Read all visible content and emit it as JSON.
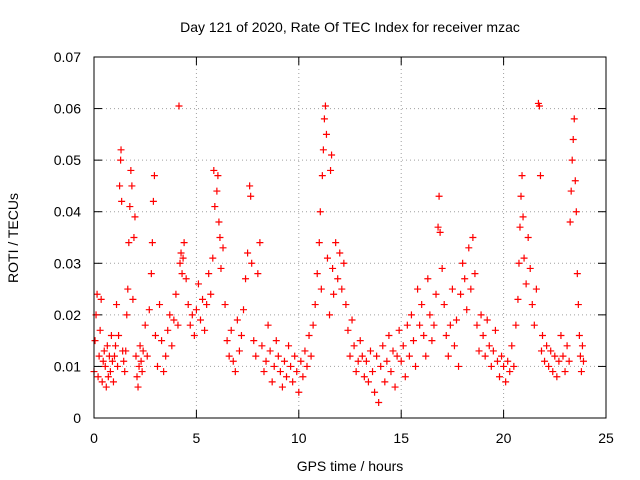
{
  "chart_data": {
    "type": "scatter",
    "title": "Day 121 of 2020, Rate Of TEC Index for receiver mzac",
    "xlabel": "GPS time / hours",
    "ylabel": "ROTI / TECUs",
    "xlim": [
      0,
      25
    ],
    "ylim": [
      0,
      0.07
    ],
    "xticks": [
      0,
      5,
      10,
      15,
      20,
      25
    ],
    "xtick_labels": [
      "0",
      "5",
      "10",
      "15",
      "20",
      "25"
    ],
    "yticks": [
      0,
      0.01,
      0.02,
      0.03,
      0.04,
      0.05,
      0.06,
      0.07
    ],
    "ytick_labels": [
      "0",
      "0.01",
      "0.02",
      "0.03",
      "0.04",
      "0.05",
      "0.06",
      "0.07"
    ],
    "grid": true,
    "marker": "+",
    "marker_color": "#ff0000",
    "series": [
      {
        "name": "ROTI",
        "points": [
          [
            0.0,
            0.009
          ],
          [
            0.05,
            0.015
          ],
          [
            0.1,
            0.02
          ],
          [
            0.15,
            0.024
          ],
          [
            0.2,
            0.008
          ],
          [
            0.25,
            0.012
          ],
          [
            0.3,
            0.017
          ],
          [
            0.35,
            0.023
          ],
          [
            0.4,
            0.007
          ],
          [
            0.45,
            0.011
          ],
          [
            0.5,
            0.013
          ],
          [
            0.55,
            0.01
          ],
          [
            0.6,
            0.006
          ],
          [
            0.65,
            0.014
          ],
          [
            0.7,
            0.008
          ],
          [
            0.75,
            0.012
          ],
          [
            0.8,
            0.009
          ],
          [
            0.85,
            0.016
          ],
          [
            0.9,
            0.011
          ],
          [
            0.95,
            0.007
          ],
          [
            1.0,
            0.012
          ],
          [
            1.05,
            0.014
          ],
          [
            1.1,
            0.022
          ],
          [
            1.15,
            0.01
          ],
          [
            1.2,
            0.016
          ],
          [
            1.25,
            0.045
          ],
          [
            1.3,
            0.05
          ],
          [
            1.32,
            0.052
          ],
          [
            1.35,
            0.042
          ],
          [
            1.4,
            0.013
          ],
          [
            1.45,
            0.011
          ],
          [
            1.5,
            0.009
          ],
          [
            1.55,
            0.013
          ],
          [
            1.6,
            0.02
          ],
          [
            1.65,
            0.025
          ],
          [
            1.7,
            0.034
          ],
          [
            1.75,
            0.041
          ],
          [
            1.8,
            0.048
          ],
          [
            1.85,
            0.045
          ],
          [
            1.9,
            0.023
          ],
          [
            1.95,
            0.035
          ],
          [
            2.0,
            0.039
          ],
          [
            2.05,
            0.012
          ],
          [
            2.1,
            0.008
          ],
          [
            2.15,
            0.006
          ],
          [
            2.2,
            0.01
          ],
          [
            2.25,
            0.014
          ],
          [
            2.3,
            0.011
          ],
          [
            2.35,
            0.009
          ],
          [
            2.4,
            0.013
          ],
          [
            2.5,
            0.018
          ],
          [
            2.6,
            0.012
          ],
          [
            2.7,
            0.021
          ],
          [
            2.8,
            0.028
          ],
          [
            2.85,
            0.034
          ],
          [
            2.9,
            0.042
          ],
          [
            2.95,
            0.047
          ],
          [
            3.0,
            0.016
          ],
          [
            3.1,
            0.01
          ],
          [
            3.2,
            0.022
          ],
          [
            3.3,
            0.015
          ],
          [
            3.4,
            0.009
          ],
          [
            3.5,
            0.012
          ],
          [
            3.6,
            0.017
          ],
          [
            3.7,
            0.02
          ],
          [
            3.8,
            0.014
          ],
          [
            3.9,
            0.019
          ],
          [
            4.0,
            0.024
          ],
          [
            4.1,
            0.018
          ],
          [
            4.15,
            0.0605
          ],
          [
            4.2,
            0.03
          ],
          [
            4.25,
            0.032
          ],
          [
            4.3,
            0.028
          ],
          [
            4.35,
            0.031
          ],
          [
            4.4,
            0.034
          ],
          [
            4.5,
            0.027
          ],
          [
            4.6,
            0.022
          ],
          [
            4.7,
            0.018
          ],
          [
            4.8,
            0.02
          ],
          [
            4.9,
            0.016
          ],
          [
            5.0,
            0.021
          ],
          [
            5.1,
            0.026
          ],
          [
            5.2,
            0.019
          ],
          [
            5.3,
            0.023
          ],
          [
            5.4,
            0.017
          ],
          [
            5.5,
            0.022
          ],
          [
            5.6,
            0.028
          ],
          [
            5.7,
            0.024
          ],
          [
            5.8,
            0.031
          ],
          [
            5.85,
            0.048
          ],
          [
            5.9,
            0.041
          ],
          [
            6.0,
            0.044
          ],
          [
            6.05,
            0.047
          ],
          [
            6.1,
            0.038
          ],
          [
            6.15,
            0.035
          ],
          [
            6.2,
            0.029
          ],
          [
            6.3,
            0.033
          ],
          [
            6.4,
            0.022
          ],
          [
            6.5,
            0.015
          ],
          [
            6.6,
            0.012
          ],
          [
            6.7,
            0.017
          ],
          [
            6.8,
            0.011
          ],
          [
            6.9,
            0.009
          ],
          [
            7.0,
            0.019
          ],
          [
            7.1,
            0.013
          ],
          [
            7.2,
            0.016
          ],
          [
            7.3,
            0.021
          ],
          [
            7.4,
            0.027
          ],
          [
            7.5,
            0.032
          ],
          [
            7.6,
            0.045
          ],
          [
            7.65,
            0.043
          ],
          [
            7.7,
            0.03
          ],
          [
            7.8,
            0.015
          ],
          [
            7.9,
            0.012
          ],
          [
            8.0,
            0.028
          ],
          [
            8.1,
            0.034
          ],
          [
            8.2,
            0.014
          ],
          [
            8.3,
            0.009
          ],
          [
            8.4,
            0.011
          ],
          [
            8.5,
            0.018
          ],
          [
            8.6,
            0.013
          ],
          [
            8.7,
            0.007
          ],
          [
            8.8,
            0.01
          ],
          [
            8.9,
            0.015
          ],
          [
            9.0,
            0.012
          ],
          [
            9.1,
            0.009
          ],
          [
            9.2,
            0.006
          ],
          [
            9.3,
            0.011
          ],
          [
            9.4,
            0.008
          ],
          [
            9.5,
            0.014
          ],
          [
            9.6,
            0.01
          ],
          [
            9.7,
            0.007
          ],
          [
            9.8,
            0.012
          ],
          [
            9.9,
            0.009
          ],
          [
            10.0,
            0.005
          ],
          [
            10.1,
            0.011
          ],
          [
            10.2,
            0.008
          ],
          [
            10.3,
            0.013
          ],
          [
            10.4,
            0.01
          ],
          [
            10.5,
            0.016
          ],
          [
            10.6,
            0.012
          ],
          [
            10.7,
            0.018
          ],
          [
            10.8,
            0.022
          ],
          [
            10.9,
            0.028
          ],
          [
            11.0,
            0.034
          ],
          [
            11.05,
            0.04
          ],
          [
            11.1,
            0.025
          ],
          [
            11.15,
            0.047
          ],
          [
            11.2,
            0.052
          ],
          [
            11.25,
            0.058
          ],
          [
            11.3,
            0.0605
          ],
          [
            11.35,
            0.055
          ],
          [
            11.4,
            0.031
          ],
          [
            11.5,
            0.02
          ],
          [
            11.55,
            0.048
          ],
          [
            11.6,
            0.051
          ],
          [
            11.65,
            0.029
          ],
          [
            11.7,
            0.024
          ],
          [
            11.8,
            0.034
          ],
          [
            11.9,
            0.027
          ],
          [
            12.0,
            0.032
          ],
          [
            12.1,
            0.025
          ],
          [
            12.2,
            0.03
          ],
          [
            12.3,
            0.022
          ],
          [
            12.4,
            0.017
          ],
          [
            12.5,
            0.012
          ],
          [
            12.6,
            0.019
          ],
          [
            12.7,
            0.014
          ],
          [
            12.8,
            0.009
          ],
          [
            12.9,
            0.011
          ],
          [
            13.0,
            0.015
          ],
          [
            13.1,
            0.012
          ],
          [
            13.2,
            0.008
          ],
          [
            13.3,
            0.011
          ],
          [
            13.4,
            0.007
          ],
          [
            13.5,
            0.013
          ],
          [
            13.6,
            0.009
          ],
          [
            13.7,
            0.005
          ],
          [
            13.8,
            0.012
          ],
          [
            13.9,
            0.003
          ],
          [
            14.0,
            0.01
          ],
          [
            14.1,
            0.014
          ],
          [
            14.2,
            0.007
          ],
          [
            14.3,
            0.011
          ],
          [
            14.4,
            0.016
          ],
          [
            14.5,
            0.009
          ],
          [
            14.6,
            0.013
          ],
          [
            14.7,
            0.006
          ],
          [
            14.8,
            0.012
          ],
          [
            14.9,
            0.017
          ],
          [
            15.0,
            0.011
          ],
          [
            15.1,
            0.014
          ],
          [
            15.2,
            0.008
          ],
          [
            15.3,
            0.018
          ],
          [
            15.4,
            0.012
          ],
          [
            15.5,
            0.02
          ],
          [
            15.6,
            0.015
          ],
          [
            15.7,
            0.01
          ],
          [
            15.8,
            0.025
          ],
          [
            15.9,
            0.018
          ],
          [
            16.0,
            0.022
          ],
          [
            16.1,
            0.016
          ],
          [
            16.2,
            0.012
          ],
          [
            16.3,
            0.027
          ],
          [
            16.4,
            0.02
          ],
          [
            16.5,
            0.015
          ],
          [
            16.6,
            0.018
          ],
          [
            16.7,
            0.024
          ],
          [
            16.8,
            0.037
          ],
          [
            16.85,
            0.043
          ],
          [
            16.9,
            0.036
          ],
          [
            17.0,
            0.029
          ],
          [
            17.1,
            0.022
          ],
          [
            17.2,
            0.016
          ],
          [
            17.3,
            0.012
          ],
          [
            17.4,
            0.018
          ],
          [
            17.5,
            0.025
          ],
          [
            17.6,
            0.014
          ],
          [
            17.7,
            0.019
          ],
          [
            17.8,
            0.01
          ],
          [
            17.9,
            0.024
          ],
          [
            18.0,
            0.03
          ],
          [
            18.1,
            0.027
          ],
          [
            18.2,
            0.021
          ],
          [
            18.3,
            0.033
          ],
          [
            18.4,
            0.025
          ],
          [
            18.5,
            0.035
          ],
          [
            18.6,
            0.028
          ],
          [
            18.7,
            0.018
          ],
          [
            18.8,
            0.013
          ],
          [
            18.9,
            0.02
          ],
          [
            19.0,
            0.016
          ],
          [
            19.1,
            0.012
          ],
          [
            19.2,
            0.019
          ],
          [
            19.3,
            0.014
          ],
          [
            19.4,
            0.01
          ],
          [
            19.5,
            0.013
          ],
          [
            19.6,
            0.017
          ],
          [
            19.7,
            0.011
          ],
          [
            19.8,
            0.008
          ],
          [
            19.9,
            0.012
          ],
          [
            20.0,
            0.01
          ],
          [
            20.1,
            0.007
          ],
          [
            20.2,
            0.011
          ],
          [
            20.3,
            0.009
          ],
          [
            20.4,
            0.014
          ],
          [
            20.5,
            0.01
          ],
          [
            20.6,
            0.018
          ],
          [
            20.7,
            0.023
          ],
          [
            20.75,
            0.03
          ],
          [
            20.8,
            0.037
          ],
          [
            20.85,
            0.043
          ],
          [
            20.9,
            0.047
          ],
          [
            20.95,
            0.039
          ],
          [
            21.0,
            0.031
          ],
          [
            21.1,
            0.026
          ],
          [
            21.2,
            0.035
          ],
          [
            21.3,
            0.029
          ],
          [
            21.4,
            0.022
          ],
          [
            21.5,
            0.018
          ],
          [
            21.6,
            0.025
          ],
          [
            21.7,
            0.061
          ],
          [
            21.75,
            0.0605
          ],
          [
            21.8,
            0.047
          ],
          [
            21.85,
            0.013
          ],
          [
            21.9,
            0.016
          ],
          [
            22.0,
            0.011
          ],
          [
            22.1,
            0.014
          ],
          [
            22.2,
            0.01
          ],
          [
            22.3,
            0.013
          ],
          [
            22.4,
            0.009
          ],
          [
            22.5,
            0.012
          ],
          [
            22.6,
            0.008
          ],
          [
            22.7,
            0.011
          ],
          [
            22.8,
            0.016
          ],
          [
            22.9,
            0.012
          ],
          [
            23.0,
            0.009
          ],
          [
            23.1,
            0.014
          ],
          [
            23.2,
            0.011
          ],
          [
            23.25,
            0.038
          ],
          [
            23.3,
            0.044
          ],
          [
            23.35,
            0.05
          ],
          [
            23.4,
            0.054
          ],
          [
            23.45,
            0.058
          ],
          [
            23.5,
            0.046
          ],
          [
            23.55,
            0.04
          ],
          [
            23.6,
            0.028
          ],
          [
            23.65,
            0.022
          ],
          [
            23.7,
            0.016
          ],
          [
            23.75,
            0.012
          ],
          [
            23.8,
            0.009
          ],
          [
            23.85,
            0.014
          ],
          [
            23.9,
            0.011
          ]
        ]
      }
    ]
  }
}
